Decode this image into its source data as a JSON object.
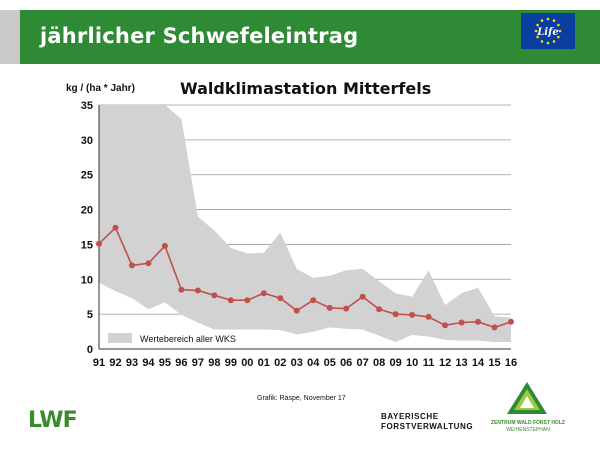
{
  "slide": {
    "title": "jährlicher Schwefeleintrag",
    "credit": "Grafik: Raspe, November 17"
  },
  "logos": {
    "eu_life": "Life",
    "lwf": "LWF",
    "bavarian_forestry_line1": "BAYERISCHE",
    "bavarian_forestry_line2": "FORSTVERWALTUNG",
    "zwfh_line1": "ZENTRUM WALD FORST HOLZ",
    "zwfh_line2": "WEIHENSTEPHAN"
  },
  "colors": {
    "header_green": "#2f8a36",
    "band_gray": "#d2d2d2",
    "series_red": "#c0504d"
  },
  "chart_data": {
    "type": "line",
    "title": "Waldklimastation Mitterfels",
    "ylabel": "kg / (ha * Jahr)",
    "xlabel": "",
    "categories": [
      "91",
      "92",
      "93",
      "94",
      "95",
      "96",
      "97",
      "98",
      "99",
      "00",
      "01",
      "02",
      "03",
      "04",
      "05",
      "06",
      "07",
      "08",
      "09",
      "10",
      "11",
      "12",
      "13",
      "14",
      "15",
      "16"
    ],
    "ylim": [
      0,
      35
    ],
    "yticks": [
      0,
      5,
      10,
      15,
      20,
      25,
      30,
      35
    ],
    "grid": true,
    "series": [
      {
        "values": [
          15.1,
          17.4,
          12.0,
          12.3,
          14.8,
          8.5,
          8.4,
          7.7,
          7.0,
          7.0,
          8.0,
          7.3,
          5.5,
          7.0,
          5.9,
          5.8,
          7.5,
          5.7,
          5.0,
          4.9,
          4.6,
          3.4,
          3.8,
          3.9,
          3.1,
          3.9
        ]
      }
    ],
    "range_band": {
      "name": "Wertebereich aller WKS",
      "upper": [
        35,
        35,
        35,
        35,
        35,
        33,
        19.0,
        17.0,
        14.5,
        13.7,
        13.8,
        16.7,
        11.5,
        10.2,
        10.5,
        11.3,
        11.5,
        9.7,
        8.0,
        7.5,
        11.3,
        6.3,
        8.0,
        8.8,
        4.7,
        4.5
      ],
      "lower": [
        9.5,
        8.3,
        7.3,
        5.7,
        6.7,
        4.9,
        3.8,
        2.8,
        2.8,
        2.8,
        2.8,
        2.7,
        2.1,
        2.5,
        3.1,
        2.9,
        2.8,
        1.9,
        1.0,
        2.0,
        1.8,
        1.3,
        1.2,
        1.2,
        1.0,
        1.0
      ]
    },
    "legend_position": "bottom-left"
  }
}
